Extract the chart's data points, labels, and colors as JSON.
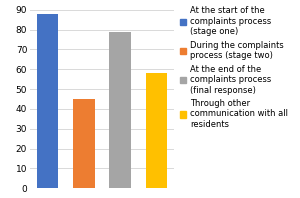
{
  "values": [
    88,
    45,
    79,
    58
  ],
  "colors": [
    "#4472C4",
    "#ED7D31",
    "#A5A5A5",
    "#FFC000"
  ],
  "labels": [
    "At the start of the\ncomplaints process\n(stage one)",
    "During the complaints\nprocess (stage two)",
    "At the end of the\ncomplaints process\n(final response)",
    "Through other\ncommunication with all\nresidents"
  ],
  "ylim": [
    0,
    90
  ],
  "yticks": [
    0,
    10,
    20,
    30,
    40,
    50,
    60,
    70,
    80,
    90
  ],
  "background_color": "#FFFFFF",
  "grid_color": "#D9D9D9",
  "legend_fontsize": 6.0,
  "bar_width": 0.6,
  "figsize": [
    3.0,
    1.98
  ],
  "dpi": 100
}
